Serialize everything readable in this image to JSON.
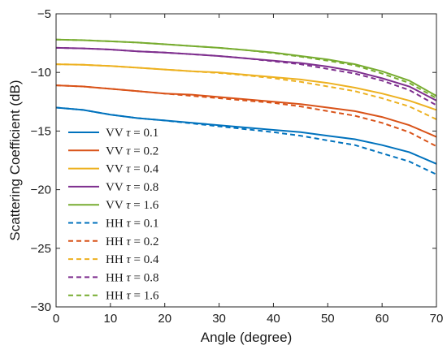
{
  "chart_data": {
    "type": "line",
    "title": "",
    "xlabel": "Angle (degree)",
    "ylabel": "Scattering Coefficient (dB)",
    "xlim": [
      0,
      70
    ],
    "ylim": [
      -30,
      -5
    ],
    "xticks": [
      0,
      10,
      20,
      30,
      40,
      50,
      60,
      70
    ],
    "yticks": [
      -30,
      -25,
      -20,
      -15,
      -10,
      -5
    ],
    "grid": false,
    "legend_position": "left",
    "x": [
      0,
      5,
      10,
      15,
      20,
      25,
      30,
      35,
      40,
      45,
      50,
      55,
      60,
      65,
      70
    ],
    "series": [
      {
        "name": "VV τ = 0.1",
        "polarization": "VV",
        "tau": "0.1",
        "color": "#0072BD",
        "style": "solid",
        "values": [
          -13.0,
          -13.2,
          -13.6,
          -13.9,
          -14.1,
          -14.3,
          -14.5,
          -14.7,
          -14.9,
          -15.1,
          -15.4,
          -15.7,
          -16.2,
          -16.8,
          -17.8
        ]
      },
      {
        "name": "VV τ = 0.2",
        "polarization": "VV",
        "tau": "0.2",
        "color": "#D95319",
        "style": "solid",
        "values": [
          -11.1,
          -11.2,
          -11.4,
          -11.6,
          -11.8,
          -11.9,
          -12.1,
          -12.3,
          -12.5,
          -12.7,
          -13.0,
          -13.3,
          -13.8,
          -14.5,
          -15.5
        ]
      },
      {
        "name": "VV τ = 0.4",
        "polarization": "VV",
        "tau": "0.4",
        "color": "#EDB120",
        "style": "solid",
        "values": [
          -9.3,
          -9.35,
          -9.45,
          -9.6,
          -9.75,
          -9.9,
          -10.0,
          -10.2,
          -10.4,
          -10.6,
          -10.9,
          -11.3,
          -11.8,
          -12.4,
          -13.2
        ]
      },
      {
        "name": "VV τ = 0.8",
        "polarization": "VV",
        "tau": "0.8",
        "color": "#7E2F8E",
        "style": "solid",
        "values": [
          -7.9,
          -7.95,
          -8.05,
          -8.2,
          -8.3,
          -8.45,
          -8.6,
          -8.8,
          -9.0,
          -9.2,
          -9.5,
          -9.9,
          -10.5,
          -11.2,
          -12.4
        ]
      },
      {
        "name": "VV τ = 1.6",
        "polarization": "VV",
        "tau": "1.6",
        "color": "#77AC30",
        "style": "solid",
        "values": [
          -7.2,
          -7.25,
          -7.35,
          -7.45,
          -7.6,
          -7.75,
          -7.9,
          -8.1,
          -8.3,
          -8.6,
          -8.9,
          -9.3,
          -9.9,
          -10.7,
          -12.0
        ]
      },
      {
        "name": "HH τ = 0.1",
        "polarization": "HH",
        "tau": "0.1",
        "color": "#0072BD",
        "style": "dashed",
        "values": [
          -13.0,
          -13.2,
          -13.6,
          -13.9,
          -14.1,
          -14.35,
          -14.6,
          -14.85,
          -15.1,
          -15.4,
          -15.8,
          -16.2,
          -16.9,
          -17.6,
          -18.7
        ]
      },
      {
        "name": "HH τ = 0.2",
        "polarization": "HH",
        "tau": "0.2",
        "color": "#D95319",
        "style": "dashed",
        "values": [
          -11.1,
          -11.2,
          -11.4,
          -11.6,
          -11.8,
          -12.0,
          -12.2,
          -12.4,
          -12.6,
          -12.9,
          -13.3,
          -13.7,
          -14.3,
          -15.1,
          -16.3
        ]
      },
      {
        "name": "HH τ = 0.4",
        "polarization": "HH",
        "tau": "0.4",
        "color": "#EDB120",
        "style": "dashed",
        "values": [
          -9.3,
          -9.35,
          -9.45,
          -9.6,
          -9.75,
          -9.9,
          -10.05,
          -10.25,
          -10.5,
          -10.8,
          -11.2,
          -11.6,
          -12.2,
          -12.9,
          -14.0
        ]
      },
      {
        "name": "HH τ = 0.8",
        "polarization": "HH",
        "tau": "0.8",
        "color": "#7E2F8E",
        "style": "dashed",
        "values": [
          -7.9,
          -7.95,
          -8.05,
          -8.2,
          -8.3,
          -8.45,
          -8.6,
          -8.8,
          -9.05,
          -9.3,
          -9.7,
          -10.1,
          -10.7,
          -11.5,
          -12.8
        ]
      },
      {
        "name": "HH τ = 1.6",
        "polarization": "HH",
        "tau": "1.6",
        "color": "#77AC30",
        "style": "dashed",
        "values": [
          -7.2,
          -7.25,
          -7.35,
          -7.45,
          -7.6,
          -7.75,
          -7.9,
          -8.1,
          -8.35,
          -8.65,
          -9.0,
          -9.4,
          -10.1,
          -10.9,
          -12.2
        ]
      }
    ]
  }
}
